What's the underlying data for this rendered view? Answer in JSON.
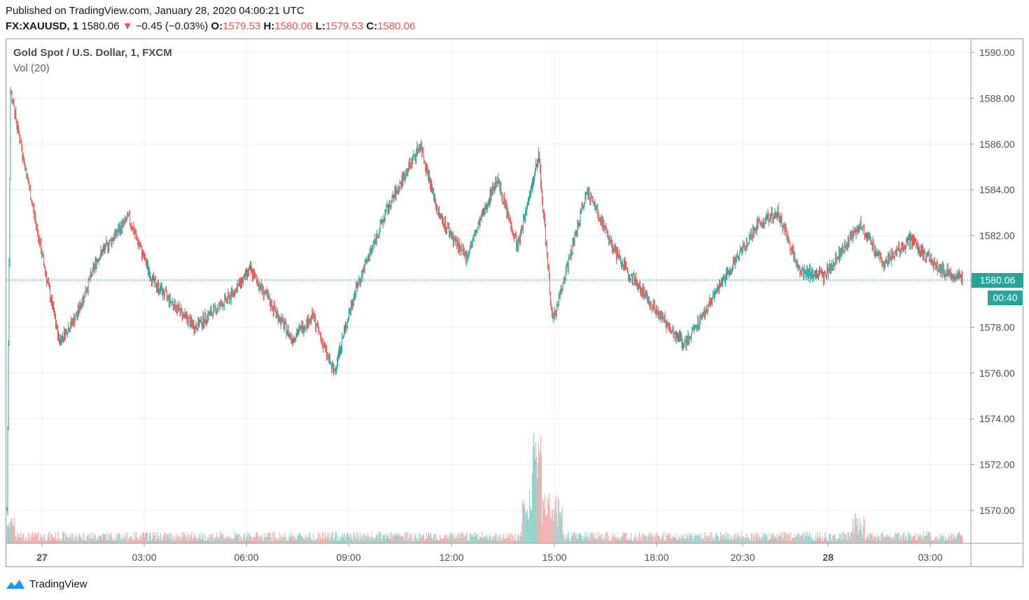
{
  "header": {
    "published": "Published on TradingView.com, January 28, 2020 04:00:21 UTC",
    "symbol": "FX:XAUUSD, 1",
    "last": "1580.06",
    "change": "−0.45 (−0.03%)",
    "o_label": "O:",
    "o_value": "1579.53",
    "h_label": "H:",
    "h_value": "1580.06",
    "l_label": "L:",
    "l_value": "1579.53",
    "c_label": "C:",
    "c_value": "1580.06"
  },
  "legend": {
    "title": "Gold Spot / U.S. Dollar, 1, FXCM",
    "volume": "Vol (20)"
  },
  "price_tag": "1580.06",
  "timer_tag": "00:40",
  "footer": {
    "brand": "TradingView"
  },
  "colors": {
    "up": "#26a69a",
    "down": "#ef5350",
    "grid": "#e9eef5",
    "axis_text": "#4a4e59"
  },
  "chart_data": {
    "type": "candlestick",
    "y_ticks": [
      "1590.00",
      "1588.00",
      "1586.00",
      "1584.00",
      "1582.00",
      "1580.00",
      "1578.00",
      "1576.00",
      "1574.00",
      "1572.00",
      "1570.00"
    ],
    "ylim": [
      1568.6,
      1590.4
    ],
    "x_ticks": [
      "27",
      "03:00",
      "06:00",
      "09:00",
      "12:00",
      "15:00",
      "18:00",
      "20:30",
      "28",
      "03:00"
    ],
    "last_price": 1580.06,
    "close_path": [
      {
        "t": 0,
        "p": 1570.0
      },
      {
        "t": 5,
        "p": 1588.3
      },
      {
        "t": 20,
        "p": 1586.0
      },
      {
        "t": 45,
        "p": 1582.0
      },
      {
        "t": 75,
        "p": 1577.4
      },
      {
        "t": 100,
        "p": 1578.5
      },
      {
        "t": 130,
        "p": 1581.0
      },
      {
        "t": 175,
        "p": 1582.8
      },
      {
        "t": 210,
        "p": 1580.0
      },
      {
        "t": 270,
        "p": 1578.0
      },
      {
        "t": 320,
        "p": 1579.3
      },
      {
        "t": 350,
        "p": 1580.5
      },
      {
        "t": 410,
        "p": 1577.5
      },
      {
        "t": 440,
        "p": 1578.5
      },
      {
        "t": 470,
        "p": 1576.0
      },
      {
        "t": 500,
        "p": 1579.5
      },
      {
        "t": 545,
        "p": 1583.0
      },
      {
        "t": 595,
        "p": 1586.0
      },
      {
        "t": 620,
        "p": 1583.0
      },
      {
        "t": 660,
        "p": 1581.0
      },
      {
        "t": 705,
        "p": 1584.5
      },
      {
        "t": 735,
        "p": 1581.5
      },
      {
        "t": 765,
        "p": 1585.5
      },
      {
        "t": 785,
        "p": 1578.2
      },
      {
        "t": 835,
        "p": 1584.0
      },
      {
        "t": 880,
        "p": 1581.0
      },
      {
        "t": 940,
        "p": 1578.5
      },
      {
        "t": 975,
        "p": 1577.2
      },
      {
        "t": 1030,
        "p": 1580.0
      },
      {
        "t": 1080,
        "p": 1582.5
      },
      {
        "t": 1110,
        "p": 1583.0
      },
      {
        "t": 1140,
        "p": 1580.5
      },
      {
        "t": 1175,
        "p": 1580.2
      },
      {
        "t": 1228,
        "p": 1582.5
      },
      {
        "t": 1260,
        "p": 1580.8
      },
      {
        "t": 1300,
        "p": 1581.8
      },
      {
        "t": 1340,
        "p": 1580.6
      },
      {
        "t": 1376,
        "p": 1580.06
      }
    ]
  }
}
